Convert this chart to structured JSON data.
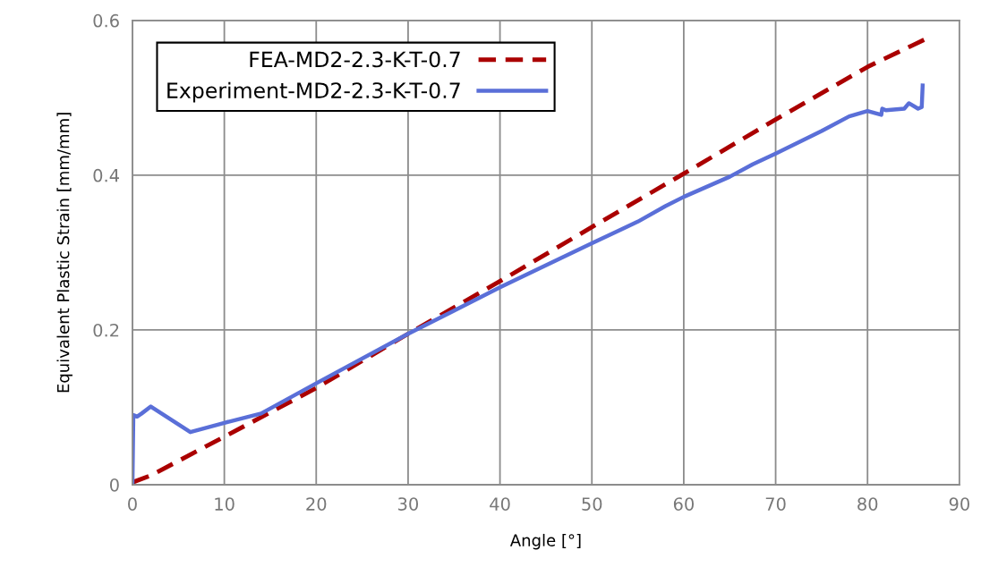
{
  "chart_data": {
    "type": "line",
    "xlabel": "Angle [°]",
    "ylabel": "Equivalent Plastic Strain [mm/mm]",
    "xlim": [
      0,
      90
    ],
    "ylim": [
      0,
      0.6
    ],
    "xticks": [
      0,
      10,
      20,
      30,
      40,
      50,
      60,
      70,
      80,
      90
    ],
    "yticks": [
      0,
      0.2,
      0.4,
      0.6
    ],
    "grid": true,
    "legend": "top left",
    "marker": "none",
    "series": [
      {
        "name": "FEA-MD2-2.3-K-T-0.7",
        "color": "#aa0000",
        "line_style": "dashed",
        "x": [
          0,
          2,
          10,
          20,
          30,
          40,
          50,
          60,
          70,
          80,
          86.5
        ],
        "values": [
          0.003,
          0.012,
          0.062,
          0.125,
          0.195,
          0.263,
          0.333,
          0.402,
          0.472,
          0.54,
          0.577
        ]
      },
      {
        "name": "Experiment-MD2-2.3-K-T-0.7",
        "color": "#5a6fd8",
        "line_style": "solid",
        "x": [
          0,
          0.1,
          0.5,
          1,
          2,
          6.3,
          10,
          14,
          20,
          30,
          40,
          50,
          55,
          58,
          60,
          65,
          67.5,
          70,
          75,
          78,
          80,
          81.5,
          81.6,
          82,
          84,
          84.5,
          85.5,
          85.9,
          86
        ],
        "values": [
          0,
          0.09,
          0.088,
          0.092,
          0.101,
          0.068,
          0.08,
          0.092,
          0.131,
          0.195,
          0.255,
          0.312,
          0.34,
          0.36,
          0.372,
          0.398,
          0.414,
          0.428,
          0.457,
          0.476,
          0.483,
          0.478,
          0.486,
          0.484,
          0.486,
          0.493,
          0.486,
          0.488,
          0.516
        ]
      }
    ]
  }
}
